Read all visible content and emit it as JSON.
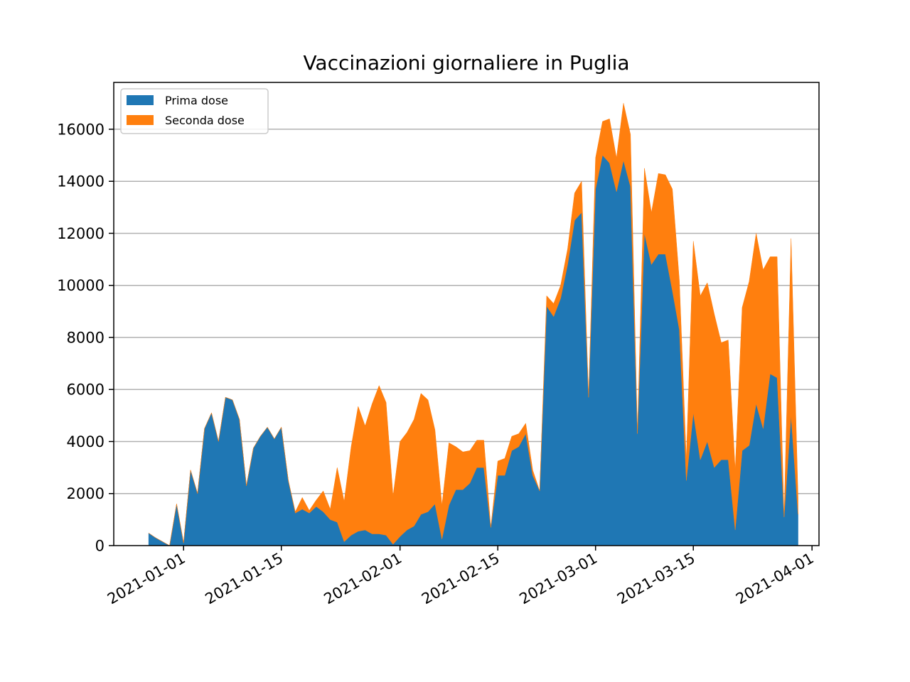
{
  "chart_data": {
    "type": "area",
    "stacked": true,
    "title": "Vaccinazioni giornaliere in Puglia",
    "xlabel": "",
    "ylabel": "",
    "ylim": [
      0,
      17800
    ],
    "xlim": [
      "2020-12-22",
      "2021-04-02"
    ],
    "y_ticks": [
      0,
      2000,
      4000,
      6000,
      8000,
      10000,
      12000,
      14000,
      16000
    ],
    "x_ticks": [
      "2021-01-01",
      "2021-01-15",
      "2021-02-01",
      "2021-02-15",
      "2021-03-01",
      "2021-03-15",
      "2021-04-01"
    ],
    "grid": "y",
    "legend": "upper-left",
    "colors": {
      "prima": "#1f77b4",
      "seconda": "#ff7f0e"
    },
    "x_start": "2020-12-27",
    "series": [
      {
        "name": "Prima dose",
        "values": [
          480,
          300,
          150,
          0,
          1600,
          100,
          2900,
          2000,
          4500,
          5100,
          4000,
          5700,
          5600,
          4850,
          2300,
          3750,
          4200,
          4550,
          4100,
          4550,
          2500,
          1250,
          1400,
          1250,
          1500,
          1300,
          1000,
          900,
          150,
          400,
          550,
          600,
          450,
          450,
          400,
          50,
          350,
          600,
          750,
          1200,
          1300,
          1600,
          250,
          1550,
          2150,
          2150,
          2400,
          3000,
          3000,
          700,
          2700,
          2700,
          3650,
          3800,
          4300,
          2700,
          2100,
          9200,
          8800,
          9500,
          10800,
          12500,
          12800,
          5700,
          13700,
          15000,
          14700,
          13600,
          14800,
          13800,
          4300,
          12000,
          10800,
          11200,
          11200,
          9800,
          8300,
          2500,
          5100,
          3300,
          4000,
          3000,
          3300,
          3300,
          600,
          3650,
          3850,
          5450,
          4500,
          6600,
          6450,
          1100,
          5000,
          1200
        ]
      },
      {
        "name": "Seconda dose",
        "values": [
          0,
          0,
          0,
          0,
          0,
          0,
          0,
          0,
          0,
          0,
          0,
          0,
          0,
          0,
          0,
          0,
          0,
          0,
          0,
          0,
          0,
          50,
          450,
          100,
          250,
          800,
          400,
          2100,
          1550,
          3400,
          4800,
          4000,
          5000,
          5700,
          5100,
          1850,
          3650,
          3750,
          4100,
          4650,
          4300,
          2850,
          1300,
          2400,
          1650,
          1450,
          1250,
          1050,
          1050,
          0,
          550,
          650,
          550,
          500,
          400,
          200,
          0,
          400,
          500,
          500,
          600,
          1050,
          1200,
          0,
          1200,
          1300,
          1700,
          1300,
          2200,
          2000,
          0,
          2500,
          2000,
          3100,
          3050,
          3900,
          1900,
          800,
          6600,
          6300,
          6100,
          5900,
          4500,
          4600,
          2300,
          5500,
          6300,
          6550,
          6100,
          4500,
          4650,
          0,
          6800,
          650
        ]
      }
    ]
  }
}
